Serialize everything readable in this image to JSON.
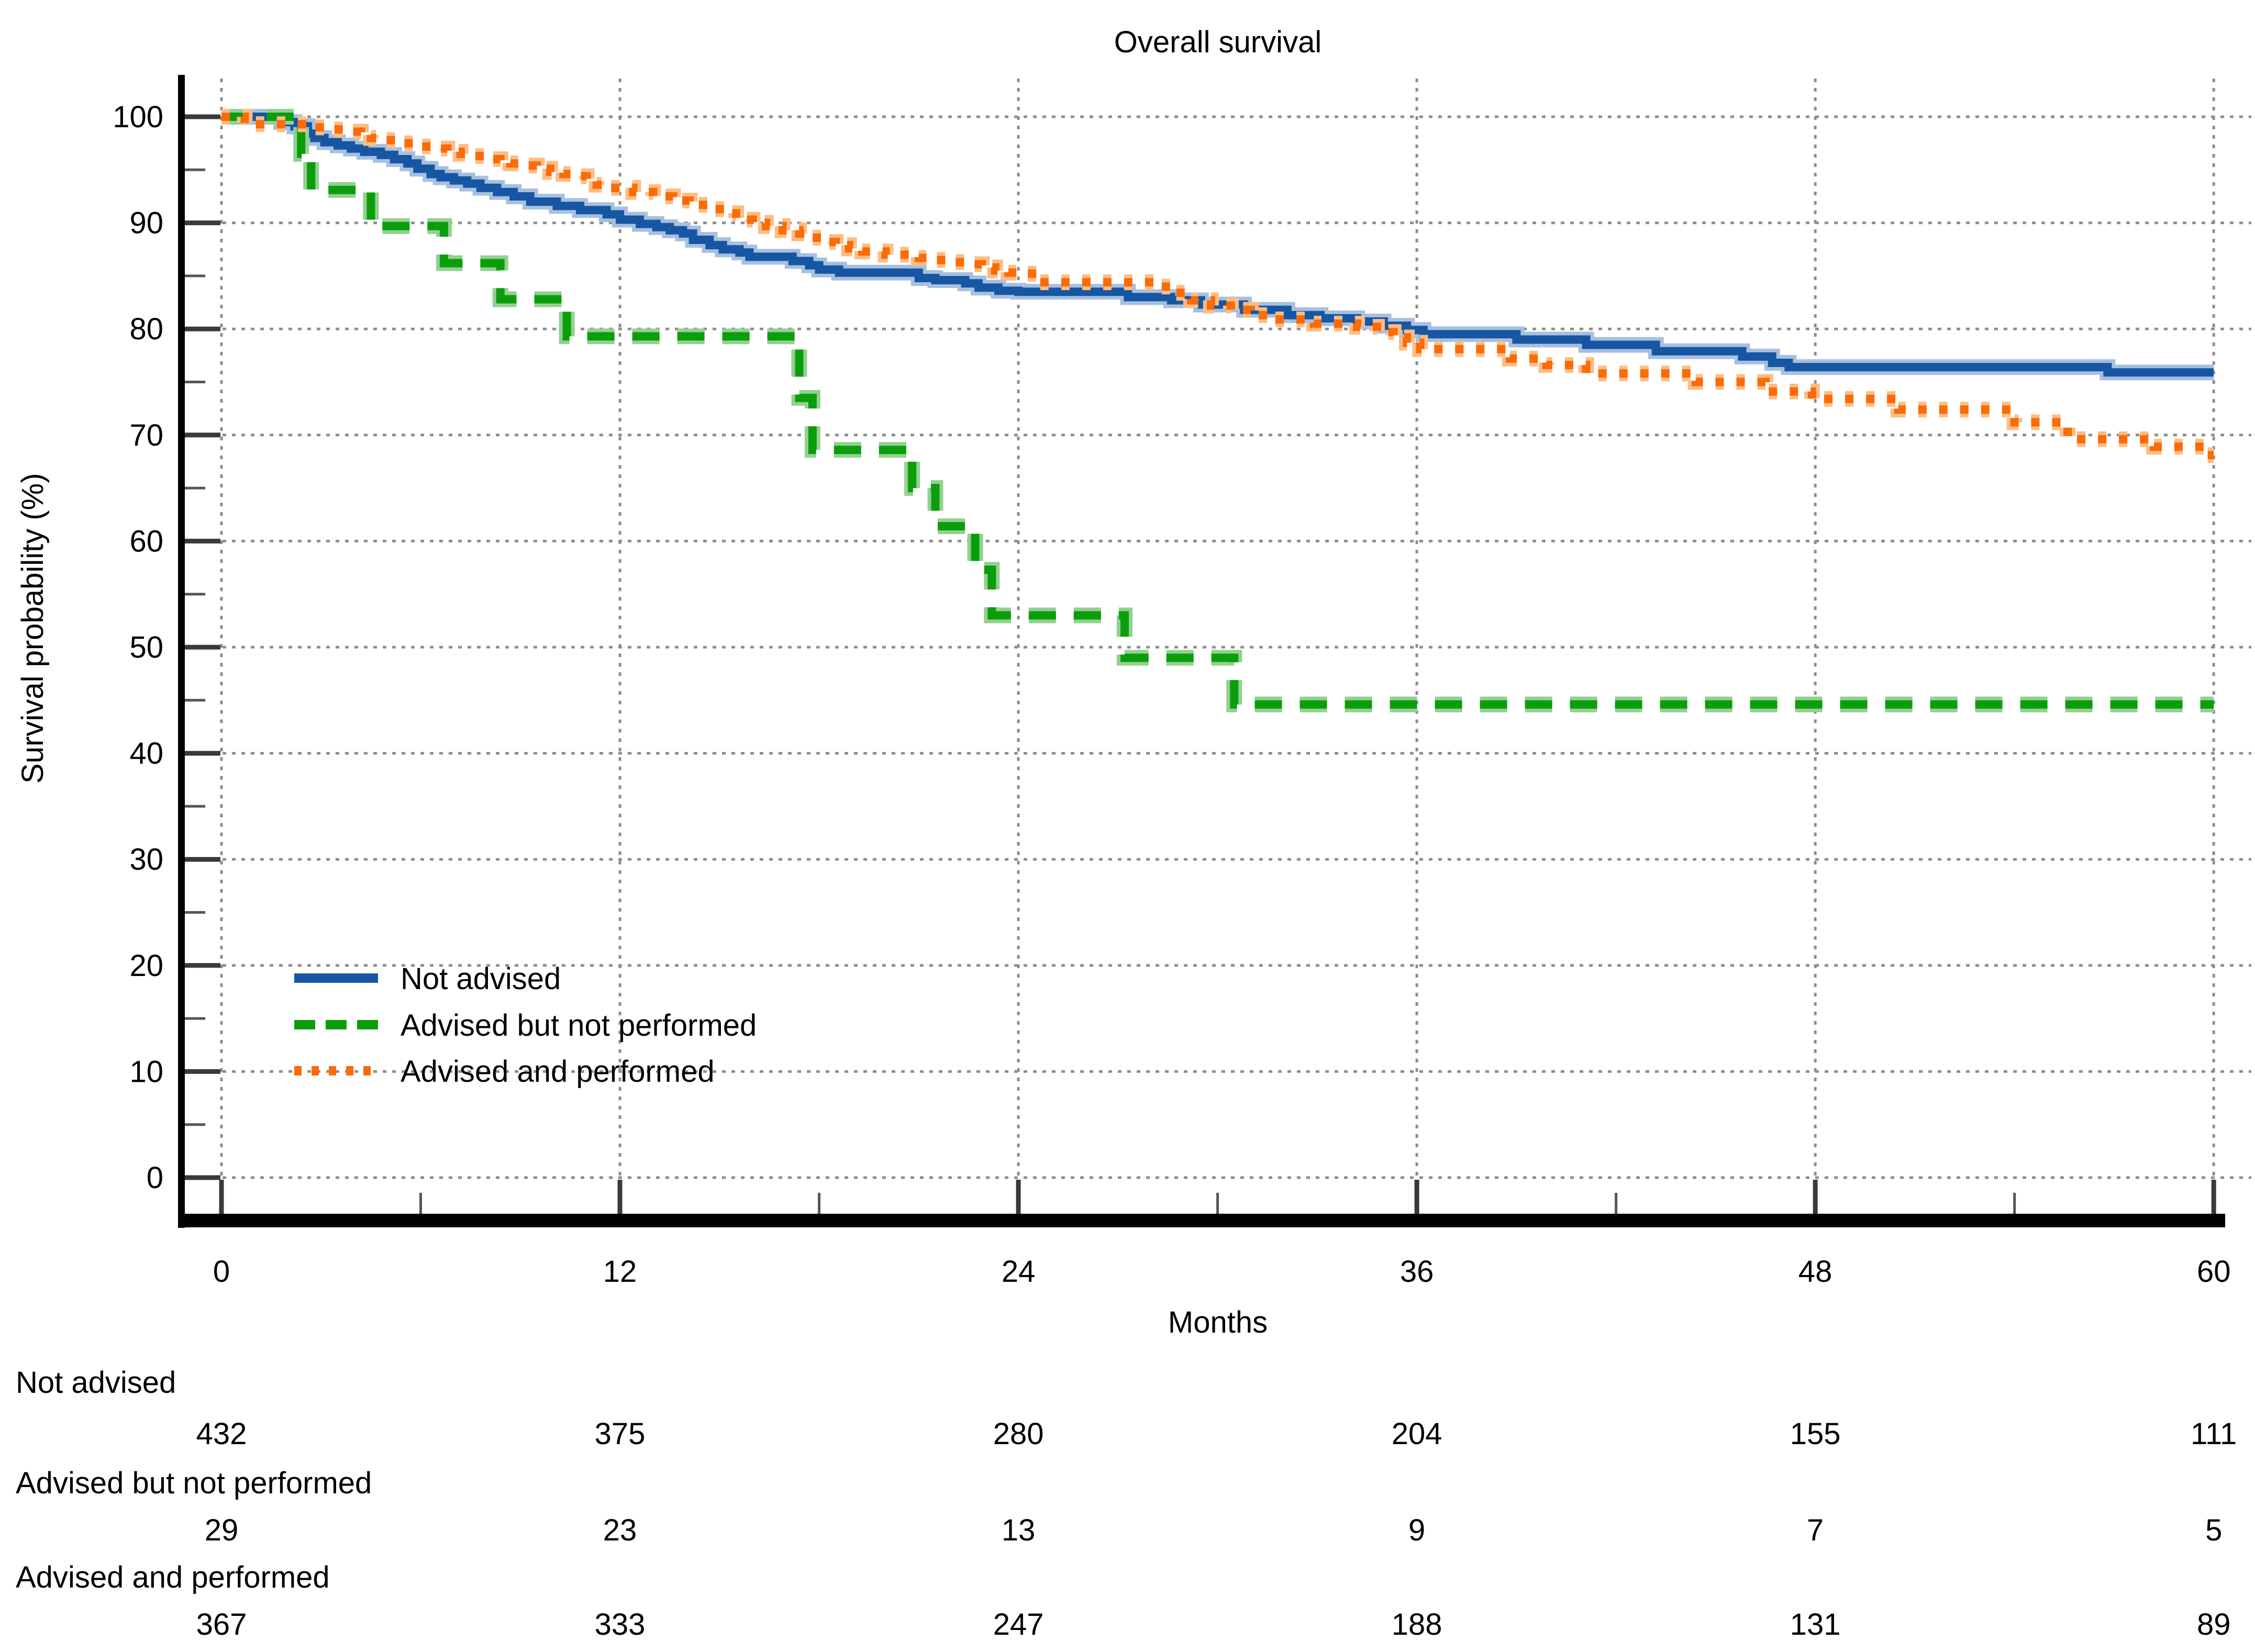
{
  "title": "Overall survival",
  "axes": {
    "y_label": "Survival probability (%)",
    "x_label": "Months",
    "y_ticks": [
      0,
      10,
      20,
      30,
      40,
      50,
      60,
      70,
      80,
      90,
      100
    ],
    "y_minor_ticks": [
      5,
      15,
      25,
      35,
      45,
      55,
      65,
      75,
      85,
      95
    ],
    "x_ticks": [
      0,
      12,
      24,
      36,
      48,
      60
    ],
    "x_minor_ticks": [
      6,
      18,
      30,
      42,
      54
    ],
    "xlim": [
      0,
      60
    ],
    "ylim": [
      0,
      100
    ]
  },
  "colors": {
    "not_advised": "#1656a3",
    "not_advised_halo": "#a7c0df",
    "advised_not_performed": "#0b9e0b",
    "advised_not_performed_halo": "#93d093",
    "advised_performed": "#fb6b07",
    "advised_performed_halo": "#fdbd84",
    "gridline": "#8e8e8e",
    "major_tick": "#3a3a3a",
    "minor_tick": "#555555",
    "spine": "#000000",
    "risk_label_blue": "#2323ae",
    "text": "#000000"
  },
  "legend": {
    "items": [
      {
        "label": "Not advised",
        "series": "not_advised",
        "style": "solid"
      },
      {
        "label": "Advised but not performed",
        "series": "advised_not_performed",
        "style": "dashed"
      },
      {
        "label": "Advised and performed",
        "series": "advised_performed",
        "style": "dotted"
      }
    ]
  },
  "chart_data": {
    "type": "line",
    "subtype": "kaplan-meier-step",
    "title": "Overall survival",
    "xlabel": "Months",
    "ylabel": "Survival probability (%)",
    "xlim": [
      0,
      60
    ],
    "ylim": [
      0,
      100
    ],
    "grid": "dotted, horizontal every 10, vertical every 12",
    "legend_position": "inside lower left",
    "series": [
      {
        "name": "Not advised",
        "style": "solid",
        "points": [
          [
            0,
            100
          ],
          [
            1.8,
            99.5
          ],
          [
            2.2,
            99.1
          ],
          [
            2.6,
            98.4
          ],
          [
            2.8,
            98.0
          ],
          [
            3.1,
            97.6
          ],
          [
            3.5,
            97.3
          ],
          [
            3.9,
            97.0
          ],
          [
            4.3,
            96.7
          ],
          [
            4.8,
            96.4
          ],
          [
            5.2,
            96.0
          ],
          [
            5.6,
            95.6
          ],
          [
            5.9,
            95.1
          ],
          [
            6.3,
            94.6
          ],
          [
            6.6,
            94.3
          ],
          [
            7.0,
            94.0
          ],
          [
            7.4,
            93.7
          ],
          [
            7.8,
            93.3
          ],
          [
            8.3,
            92.9
          ],
          [
            8.8,
            92.5
          ],
          [
            9.3,
            92.0
          ],
          [
            10.1,
            91.6
          ],
          [
            10.8,
            91.2
          ],
          [
            11.6,
            90.8
          ],
          [
            12.0,
            90.3
          ],
          [
            12.6,
            89.9
          ],
          [
            13.1,
            89.6
          ],
          [
            13.5,
            89.3
          ],
          [
            13.9,
            89.0
          ],
          [
            14.2,
            88.4
          ],
          [
            14.7,
            87.9
          ],
          [
            15.1,
            87.5
          ],
          [
            15.6,
            87.2
          ],
          [
            15.9,
            86.8
          ],
          [
            17.2,
            86.4
          ],
          [
            17.7,
            86.0
          ],
          [
            18.0,
            85.6
          ],
          [
            18.6,
            85.3
          ],
          [
            21.0,
            84.8
          ],
          [
            21.5,
            84.6
          ],
          [
            22.4,
            84.3
          ],
          [
            22.8,
            83.9
          ],
          [
            23.4,
            83.6
          ],
          [
            24.0,
            83.5
          ],
          [
            27.3,
            83.0
          ],
          [
            28.6,
            82.7
          ],
          [
            29.5,
            82.3
          ],
          [
            30.8,
            81.8
          ],
          [
            32.1,
            81.3
          ],
          [
            33.1,
            81.0
          ],
          [
            34.2,
            80.7
          ],
          [
            35.0,
            80.3
          ],
          [
            35.7,
            79.9
          ],
          [
            36.2,
            79.5
          ],
          [
            39.0,
            79.0
          ],
          [
            41.1,
            78.5
          ],
          [
            43.2,
            77.9
          ],
          [
            45.8,
            77.4
          ],
          [
            46.7,
            76.8
          ],
          [
            47.2,
            76.4
          ],
          [
            56.8,
            75.9
          ]
        ]
      },
      {
        "name": "Advised but not performed",
        "style": "dashed",
        "points": [
          [
            0,
            100
          ],
          [
            2.4,
            96.5
          ],
          [
            2.7,
            93.1
          ],
          [
            4.5,
            89.7
          ],
          [
            6.7,
            86.2
          ],
          [
            8.4,
            82.8
          ],
          [
            10.4,
            79.3
          ],
          [
            17.4,
            73.5
          ],
          [
            17.8,
            68.6
          ],
          [
            20.8,
            65.0
          ],
          [
            21.5,
            61.4
          ],
          [
            22.7,
            57.3
          ],
          [
            23.2,
            53.0
          ],
          [
            27.2,
            49.0
          ],
          [
            30.5,
            44.6
          ]
        ]
      },
      {
        "name": "Advised and performed",
        "style": "dotted",
        "points": [
          [
            0,
            100
          ],
          [
            0.7,
            99.3
          ],
          [
            2.6,
            99.0
          ],
          [
            3.4,
            98.8
          ],
          [
            3.9,
            98.6
          ],
          [
            4.2,
            98.3
          ],
          [
            4.5,
            98.0
          ],
          [
            4.9,
            97.8
          ],
          [
            5.4,
            97.5
          ],
          [
            5.9,
            97.2
          ],
          [
            6.4,
            97.0
          ],
          [
            6.8,
            96.7
          ],
          [
            7.2,
            96.5
          ],
          [
            7.6,
            96.3
          ],
          [
            8.0,
            96.0
          ],
          [
            8.4,
            95.8
          ],
          [
            8.7,
            95.6
          ],
          [
            9.1,
            95.4
          ],
          [
            9.5,
            95.1
          ],
          [
            9.9,
            94.8
          ],
          [
            10.3,
            94.6
          ],
          [
            10.6,
            94.4
          ],
          [
            11.0,
            94.1
          ],
          [
            11.3,
            93.6
          ],
          [
            11.7,
            93.3
          ],
          [
            12.4,
            92.9
          ],
          [
            13.0,
            92.5
          ],
          [
            13.6,
            92.1
          ],
          [
            14.1,
            91.7
          ],
          [
            14.7,
            91.3
          ],
          [
            15.2,
            90.9
          ],
          [
            15.5,
            90.3
          ],
          [
            16.0,
            90.0
          ],
          [
            16.4,
            89.7
          ],
          [
            16.9,
            89.3
          ],
          [
            17.4,
            89.0
          ],
          [
            17.7,
            88.6
          ],
          [
            18.1,
            88.2
          ],
          [
            18.5,
            87.9
          ],
          [
            18.9,
            87.6
          ],
          [
            19.3,
            87.3
          ],
          [
            20.0,
            87.0
          ],
          [
            21.0,
            86.7
          ],
          [
            21.5,
            86.5
          ],
          [
            22.0,
            86.3
          ],
          [
            22.6,
            86.1
          ],
          [
            22.9,
            85.8
          ],
          [
            23.3,
            85.5
          ],
          [
            23.7,
            85.3
          ],
          [
            24.1,
            85.2
          ],
          [
            24.6,
            84.4
          ],
          [
            28.1,
            84.0
          ],
          [
            28.7,
            83.4
          ],
          [
            29.2,
            82.7
          ],
          [
            29.8,
            82.2
          ],
          [
            30.4,
            81.8
          ],
          [
            31.0,
            81.3
          ],
          [
            31.6,
            80.9
          ],
          [
            32.9,
            80.5
          ],
          [
            34.2,
            80.2
          ],
          [
            34.8,
            79.7
          ],
          [
            35.3,
            79.2
          ],
          [
            35.7,
            78.7
          ],
          [
            36.1,
            78.1
          ],
          [
            38.8,
            77.2
          ],
          [
            39.9,
            76.6
          ],
          [
            41.1,
            75.8
          ],
          [
            44.4,
            75.0
          ],
          [
            46.5,
            74.1
          ],
          [
            47.9,
            73.4
          ],
          [
            50.5,
            72.4
          ],
          [
            54.0,
            71.2
          ],
          [
            55.6,
            69.6
          ],
          [
            58.2,
            68.9
          ],
          [
            59.8,
            68.1
          ]
        ]
      }
    ]
  },
  "risk_table": {
    "times": [
      0,
      12,
      24,
      36,
      48,
      60
    ],
    "rows": [
      {
        "label": "Not advised",
        "series": "not_advised",
        "counts": [
          432,
          375,
          280,
          204,
          155,
          111
        ]
      },
      {
        "label": "Advised but not performed",
        "series": "advised_not_performed",
        "counts": [
          29,
          23,
          13,
          9,
          7,
          5
        ]
      },
      {
        "label": "Advised and performed",
        "series": "advised_performed",
        "counts": [
          367,
          333,
          247,
          188,
          131,
          89
        ]
      }
    ]
  }
}
